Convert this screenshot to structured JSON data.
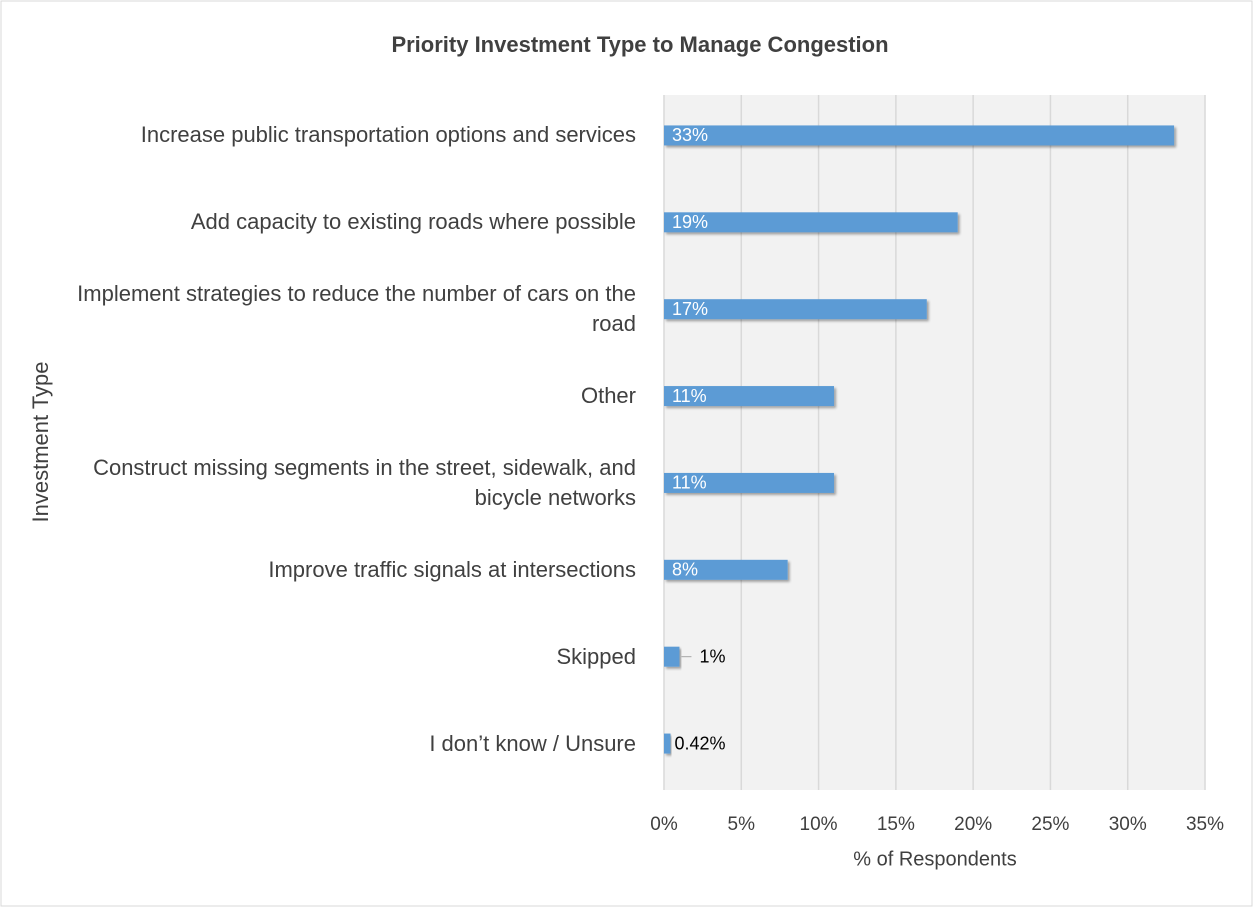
{
  "chart_data": {
    "type": "barh",
    "title": "Priority Investment Type to Manage Congestion",
    "xlabel": "% of Respondents",
    "ylabel": "Investment Type",
    "categories": [
      "Increase public transportation options and services",
      "Add capacity to existing roads where possible",
      "Implement strategies to reduce the number of cars on the road",
      "Other",
      "Construct missing segments in the street, sidewalk, and bicycle networks",
      "Improve traffic signals at intersections",
      "Skipped",
      "I don’t know / Unsure"
    ],
    "values": [
      33,
      19,
      17,
      11,
      11,
      8,
      1,
      0.42
    ],
    "value_labels": [
      "33%",
      "19%",
      "17%",
      "11%",
      "11%",
      "8%",
      "1%",
      "0.42%"
    ],
    "color": "#5b9bd5",
    "xlim": [
      0,
      35
    ],
    "xticks": [
      {
        "value": 0,
        "label": "0%"
      },
      {
        "value": 5,
        "label": "5%"
      },
      {
        "value": 10,
        "label": "10%"
      },
      {
        "value": 15,
        "label": "15%"
      },
      {
        "value": 20,
        "label": "20%"
      },
      {
        "value": 25,
        "label": "25%"
      },
      {
        "value": 30,
        "label": "30%"
      },
      {
        "value": 35,
        "label": "35%"
      }
    ],
    "grid": true
  }
}
